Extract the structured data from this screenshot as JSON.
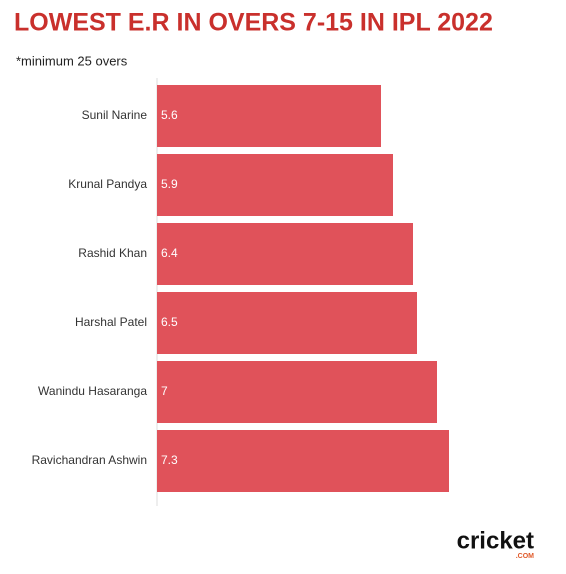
{
  "chart_data": {
    "type": "hbar",
    "title": "LOWEST E.R IN OVERS 7-15 IN IPL 2022",
    "subtitle": "*minimum 25 overs",
    "categories": [
      "Sunil Narine",
      "Krunal Pandya",
      "Rashid Khan",
      "Harshal Patel",
      "Wanindu Hasaranga",
      "Ravichandran Ashwin"
    ],
    "values": [
      5.6,
      5.9,
      6.4,
      6.5,
      7,
      7.3
    ],
    "color": "#e0525a",
    "xlim": [
      0,
      10
    ],
    "logo": "cricket",
    "logo_suffix": ".COM"
  }
}
